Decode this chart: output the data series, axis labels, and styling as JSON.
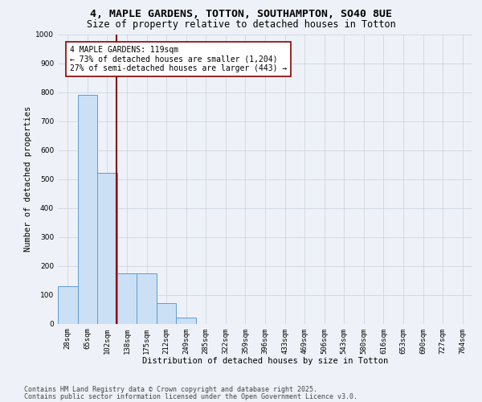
{
  "title_line1": "4, MAPLE GARDENS, TOTTON, SOUTHAMPTON, SO40 8UE",
  "title_line2": "Size of property relative to detached houses in Totton",
  "xlabel": "Distribution of detached houses by size in Totton",
  "ylabel": "Number of detached properties",
  "categories": [
    "28sqm",
    "65sqm",
    "102sqm",
    "138sqm",
    "175sqm",
    "212sqm",
    "249sqm",
    "285sqm",
    "322sqm",
    "359sqm",
    "396sqm",
    "433sqm",
    "469sqm",
    "506sqm",
    "543sqm",
    "580sqm",
    "616sqm",
    "653sqm",
    "690sqm",
    "727sqm",
    "764sqm"
  ],
  "values": [
    130,
    790,
    520,
    175,
    175,
    70,
    20,
    0,
    0,
    0,
    0,
    0,
    0,
    0,
    0,
    0,
    0,
    0,
    0,
    0,
    0
  ],
  "bar_color": "#cce0f5",
  "bar_edge_color": "#5b9bd5",
  "vline_color": "#8b0000",
  "annotation_text": "4 MAPLE GARDENS: 119sqm\n← 73% of detached houses are smaller (1,204)\n27% of semi-detached houses are larger (443) →",
  "annotation_box_color": "#ffffff",
  "annotation_box_edge": "#8b0000",
  "ylim": [
    0,
    1000
  ],
  "yticks": [
    0,
    100,
    200,
    300,
    400,
    500,
    600,
    700,
    800,
    900,
    1000
  ],
  "footer_line1": "Contains HM Land Registry data © Crown copyright and database right 2025.",
  "footer_line2": "Contains public sector information licensed under the Open Government Licence v3.0.",
  "bg_color": "#eef2f8",
  "plot_bg_color": "#eef2f8",
  "grid_color": "#c8d0dc",
  "title_fontsize": 9.5,
  "subtitle_fontsize": 8.5,
  "axis_label_fontsize": 7.5,
  "tick_fontsize": 6.5,
  "annotation_fontsize": 7,
  "footer_fontsize": 6
}
